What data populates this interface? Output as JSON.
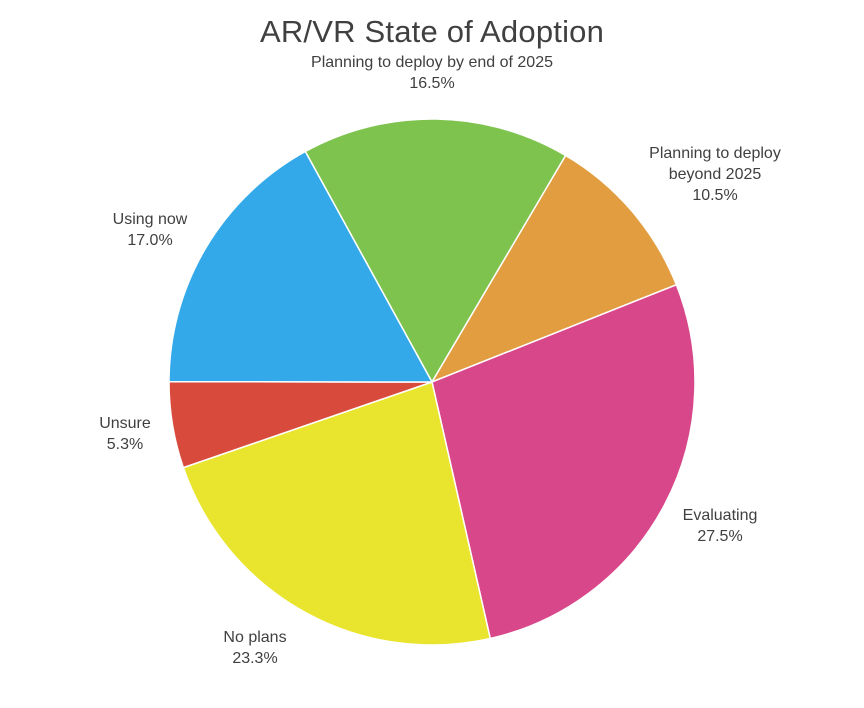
{
  "chart_data": {
    "type": "pie",
    "title": "AR/VR State of Adoption",
    "start_angle_deg": -28.8,
    "direction": "clockwise",
    "slices": [
      {
        "label": "Planning to deploy by end of 2025",
        "value": 16.5,
        "pct_label": "16.5%",
        "color": "#7fc34f"
      },
      {
        "label": "Planning to deploy beyond 2025",
        "value": 10.5,
        "pct_label": "10.5%",
        "color": "#e19d3f"
      },
      {
        "label": "Evaluating",
        "value": 27.5,
        "pct_label": "27.5%",
        "color": "#d8478a"
      },
      {
        "label": "No plans",
        "value": 23.3,
        "pct_label": "23.3%",
        "color": "#e9e52f"
      },
      {
        "label": "Unsure",
        "value": 5.3,
        "pct_label": "5.3%",
        "color": "#d84b3c"
      },
      {
        "label": "Using now",
        "value": 17.0,
        "pct_label": "17.0%",
        "color": "#33a9ea"
      }
    ],
    "legend": "none (data labels outside slices)"
  },
  "labels": {
    "by2025": {
      "line1": "Planning to deploy by end of 2025",
      "pct": "16.5%"
    },
    "beyond": {
      "line1": "Planning to deploy",
      "line2": "beyond 2025",
      "pct": "10.5%"
    },
    "evaluating": {
      "line1": "Evaluating",
      "pct": "27.5%"
    },
    "noplans": {
      "line1": "No plans",
      "pct": "23.3%"
    },
    "unsure": {
      "line1": "Unsure",
      "pct": "5.3%"
    },
    "using": {
      "line1": "Using now",
      "pct": "17.0%"
    }
  }
}
